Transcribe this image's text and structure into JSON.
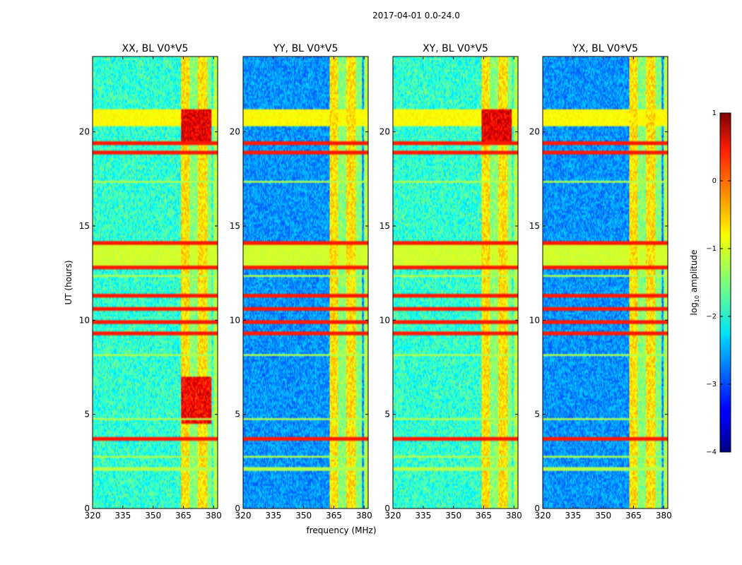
{
  "figure": {
    "suptitle": "2017-04-01 0.0-24.0"
  },
  "chart_data": [
    {
      "type": "heatmap",
      "title": "XX, BL V0*V5",
      "xlabel": "",
      "ylabel": "UT (hours)",
      "xlim": [
        320,
        382
      ],
      "ylim": [
        0,
        24
      ],
      "xticks": [
        320,
        335,
        350,
        365,
        380
      ],
      "yticks": [
        0,
        5,
        10,
        15,
        20
      ],
      "data": "log10 amplitude spectrogram"
    },
    {
      "type": "heatmap",
      "title": "YY, BL V0*V5",
      "xlabel": "frequency (MHz)",
      "ylabel": "",
      "xlim": [
        320,
        382
      ],
      "ylim": [
        0,
        24
      ],
      "xticks": [
        320,
        335,
        350,
        365,
        380
      ],
      "yticks": [
        0,
        5,
        10,
        15,
        20
      ],
      "data": "log10 amplitude spectrogram"
    },
    {
      "type": "heatmap",
      "title": "XY, BL V0*V5",
      "xlabel": "",
      "ylabel": "",
      "xlim": [
        320,
        382
      ],
      "ylim": [
        0,
        24
      ],
      "xticks": [
        320,
        335,
        350,
        365,
        380
      ],
      "yticks": [
        0,
        5,
        10,
        15,
        20
      ],
      "data": "log10 amplitude spectrogram"
    },
    {
      "type": "heatmap",
      "title": "YX, BL V0*V5",
      "xlabel": "",
      "ylabel": "",
      "xlim": [
        320,
        382
      ],
      "ylim": [
        0,
        24
      ],
      "xticks": [
        320,
        335,
        350,
        365,
        380
      ],
      "yticks": [
        0,
        5,
        10,
        15,
        20
      ],
      "data": "log10 amplitude spectrogram"
    }
  ],
  "colorbar": {
    "label": "log10 amplitude",
    "label_base": "log",
    "label_sub": "10",
    "label_rest": " amplitude",
    "range": [
      -4,
      1
    ],
    "ticks": [
      1,
      0,
      -1,
      -2,
      -3,
      -4
    ],
    "tick_labels": [
      "1",
      "0",
      "−1",
      "−2",
      "−3",
      "−4"
    ],
    "colormap": "jet"
  }
}
